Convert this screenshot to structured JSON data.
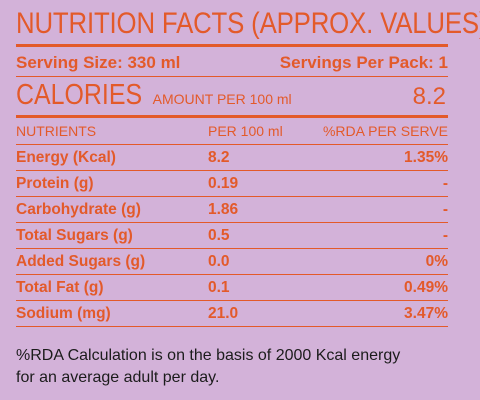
{
  "label": {
    "title": "NUTRITION FACTS (APPROX. VALUES)",
    "serving_size": "Serving Size: 330 ml",
    "servings_per_pack": "Servings Per Pack: 1",
    "calories_title": "CALORIES",
    "calories_sub": "AMOUNT PER 100 ml",
    "calories_value": "8.2",
    "columns": [
      "NUTRIENTS",
      "PER 100 ml",
      "%RDA PER SERVE"
    ],
    "rows": [
      {
        "name": "Energy (Kcal)",
        "per100": "8.2",
        "rda": "1.35%"
      },
      {
        "name": "Protein (g)",
        "per100": "0.19",
        "rda": "-"
      },
      {
        "name": "Carbohydrate (g)",
        "per100": "1.86",
        "rda": "-"
      },
      {
        "name": "Total Sugars (g)",
        "per100": "0.5",
        "rda": "-"
      },
      {
        "name": "Added Sugars (g)",
        "per100": "0.0",
        "rda": "0%"
      },
      {
        "name": "Total Fat (g)",
        "per100": "0.1",
        "rda": "0.49%"
      },
      {
        "name": "Sodium (mg)",
        "per100": "21.0",
        "rda": "3.47%"
      }
    ],
    "footnote_line1": "%RDA Calculation is on the basis of 2000 Kcal energy",
    "footnote_line2": "for an average adult per day."
  },
  "colors": {
    "background": "#d3b2d9",
    "accent": "#e35a2a",
    "footnote_text": "#1c1c1c"
  }
}
